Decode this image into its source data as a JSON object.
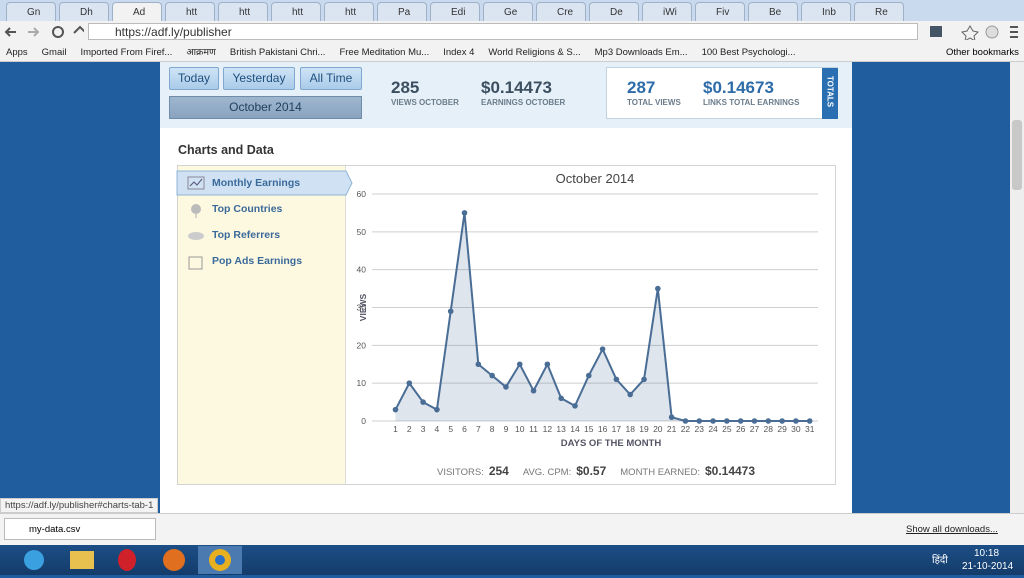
{
  "browser": {
    "tabs": [
      "Gn",
      "Dh",
      "Ad",
      "htt",
      "htt",
      "htt",
      "htt",
      "Pa",
      "Edi",
      "Ge",
      "Cre",
      "De",
      "iWi",
      "Fiv",
      "Be",
      "Inb",
      "Re"
    ],
    "url": "https://adf.ly/publisher",
    "bookmarks": [
      "Apps",
      "Gmail",
      "Imported From Firef...",
      "आक्रमण",
      "British Pakistani Chri...",
      "Free Meditation Mu...",
      "Index 4",
      "World Religions & S...",
      "Mp3 Downloads Em...",
      "100 Best Psychologi..."
    ],
    "other_bookmarks": "Other bookmarks"
  },
  "page": {
    "buttons": [
      "Today",
      "Yesterday",
      "All Time"
    ],
    "month_select": "October 2014",
    "stats": [
      {
        "value": 285,
        "label": "VIEWS OCTOBER"
      },
      {
        "value": "$0.14473",
        "label": "EARNINGS OCTOBER"
      }
    ],
    "totals": [
      {
        "value": 287,
        "label": "TOTAL VIEWS"
      },
      {
        "value": "$0.14673",
        "label": "LINKS TOTAL EARNINGS"
      }
    ],
    "totals_tab": "TOTALS",
    "section_title": "Charts and Data",
    "menu": [
      "Monthly Earnings",
      "Top Countries",
      "Top Referrers",
      "Pop Ads Earnings"
    ],
    "summary": [
      {
        "label": "VISITORS:",
        "value": 254
      },
      {
        "label": "AVG. CPM:",
        "value": "$0.57"
      },
      {
        "label": "MONTH EARNED:",
        "value": "$0.14473"
      }
    ]
  },
  "chart_data": {
    "type": "line",
    "title": "October 2014",
    "y_label": "VIEWS",
    "x_label": "DAYS OF THE MONTH",
    "x": [
      1,
      2,
      3,
      4,
      5,
      6,
      7,
      8,
      9,
      10,
      11,
      12,
      13,
      14,
      15,
      16,
      17,
      18,
      19,
      20,
      21,
      22,
      23,
      24,
      25,
      26,
      27,
      28,
      29,
      30,
      31
    ],
    "values": [
      3,
      10,
      5,
      3,
      29,
      55,
      15,
      12,
      9,
      15,
      8,
      15,
      6,
      4,
      12,
      19,
      11,
      7,
      11,
      35,
      1,
      0,
      0,
      0,
      0,
      0,
      0,
      0,
      0,
      0,
      0
    ],
    "color": "#4a6d96",
    "area": true,
    "xlim": [
      -0.7,
      31.6
    ],
    "xticks": [
      1,
      2,
      3,
      4,
      5,
      6,
      7,
      8,
      9,
      10,
      11,
      12,
      13,
      14,
      15,
      16,
      17,
      18,
      19,
      20,
      21,
      22,
      23,
      24,
      25,
      26,
      27,
      28,
      29,
      30,
      31
    ],
    "ylim": [
      0,
      60
    ],
    "yticks": [
      0,
      10,
      20,
      30,
      40,
      50,
      60
    ],
    "grid": true
  },
  "status": {
    "link": "https://adf.ly/publisher#charts-tab-1",
    "download": "my-data.csv",
    "show_all": "Show all downloads..."
  },
  "taskbar": {
    "language": "हिंदी",
    "time": "10:18",
    "date": "21-10-2014"
  }
}
